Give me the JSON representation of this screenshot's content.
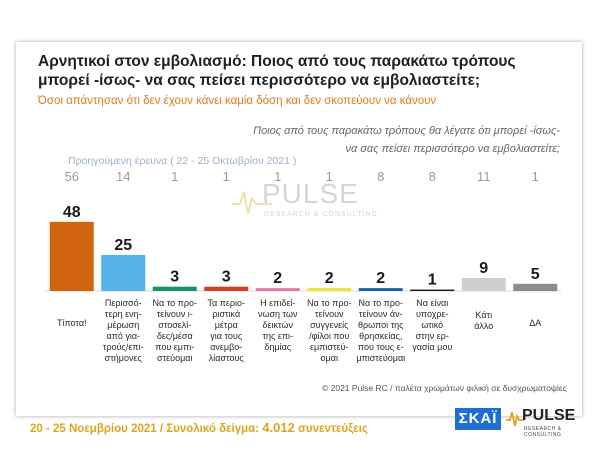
{
  "title_line1": "Αρνητικοί στον εμβολιασμό: Ποιος από τους παρακάτω τρόπους",
  "title_line2": "μπορεί -ίσως- να σας πείσει περισσότερο να εμβολιαστείτε;",
  "subtitle": "Όσοι απάντησαν ότι δεν έχουν κάνει καμία δόση και δεν σκοπεύουν να κάνουν",
  "question_line1": "Ποιος από τους παρακάτω τρόπους θα λέγατε ότι μπορεί -ίσως-",
  "question_line2": "να σας πείσει περισσότερο να εμβολιαστείτε;",
  "prev_survey_label": "Προηγούμενη έρευνα  ( 22 - 25 Οκτωβρίου 2021 )",
  "watermark": {
    "text": "PULSE",
    "sub": "RESEARCH & CONSULTING"
  },
  "footer_note": "© 2021 Pulse RC  /  παλέτα χρωμάτων φιλική σε δυσχρωματοψίες",
  "footer": {
    "date": "20 - 25 Νοεμβρίου 2021",
    "sep": " / ",
    "sample_label": "Συνολικό δείγμα:",
    "sample_value": "4.012",
    "sample_unit": "συνεντεύξεις"
  },
  "logos": {
    "skai": "ΣΚΑΪ",
    "pulse": "PULSE",
    "pulse_sub": "RESEARCH & CONSULTING"
  },
  "colors": {
    "orange": "#d3640f",
    "blue": "#56b2e8",
    "green": "#1e8f6a",
    "vermilion": "#d43f2a",
    "pink": "#d97aa8",
    "yellow": "#f0e040",
    "navy": "#1f5fa8",
    "black": "#1a1a1a",
    "lightgray": "#cfcfcf",
    "gray": "#8c8c8c"
  },
  "chart_data": {
    "type": "bar",
    "ylim": [
      0,
      50
    ],
    "categories": [
      [
        "Τίποτα!"
      ],
      [
        "Περισσό-",
        "τερη ενη-",
        "μέρωση",
        "από για-",
        "τρούς/επι-",
        "στήμονες"
      ],
      [
        "Να το προ-",
        "τείνουν ι-",
        "στοσελί-",
        "δες/μέσα",
        "που εμπι-",
        "στεύομαι"
      ],
      [
        "Τα περιο-",
        "ριστικά",
        "μέτρα",
        "για τους",
        "ανεμβο-",
        "λίαστους"
      ],
      [
        "Η επιδεί-",
        "νωση των",
        "δεικτών",
        "της επι-",
        "δημίας"
      ],
      [
        "Να το προ-",
        "τείνουν",
        "συγγενείς",
        "/φίλοι που",
        "εμπιστεύ-",
        "ομαι"
      ],
      [
        "Να το προ-",
        "τείνουν άν-",
        "θρωποι της",
        "θρησκείας,",
        "που τους ε-",
        "μπιστεύομαι"
      ],
      [
        "Να είναι",
        "υποχρε-",
        "ωτικό",
        "στην ερ-",
        "γασία μου"
      ],
      [
        "Κάτι",
        "άλλο"
      ],
      [
        "ΔΑ"
      ]
    ],
    "values": [
      48,
      25,
      3,
      3,
      2,
      2,
      2,
      1,
      9,
      5
    ],
    "previous_values": [
      56,
      14,
      1,
      1,
      1,
      1,
      8,
      8,
      11,
      1
    ],
    "value_labels": [
      "48",
      "25",
      "3",
      "3",
      "2",
      "2",
      "2",
      "1",
      "9",
      "5"
    ],
    "previous_labels": [
      "56",
      "14",
      "1",
      "1",
      "1",
      "1",
      "8",
      "8",
      "11",
      "1"
    ],
    "bar_colors": [
      "orange",
      "blue",
      "green",
      "vermilion",
      "pink",
      "yellow",
      "navy",
      "black",
      "lightgray",
      "gray"
    ]
  }
}
